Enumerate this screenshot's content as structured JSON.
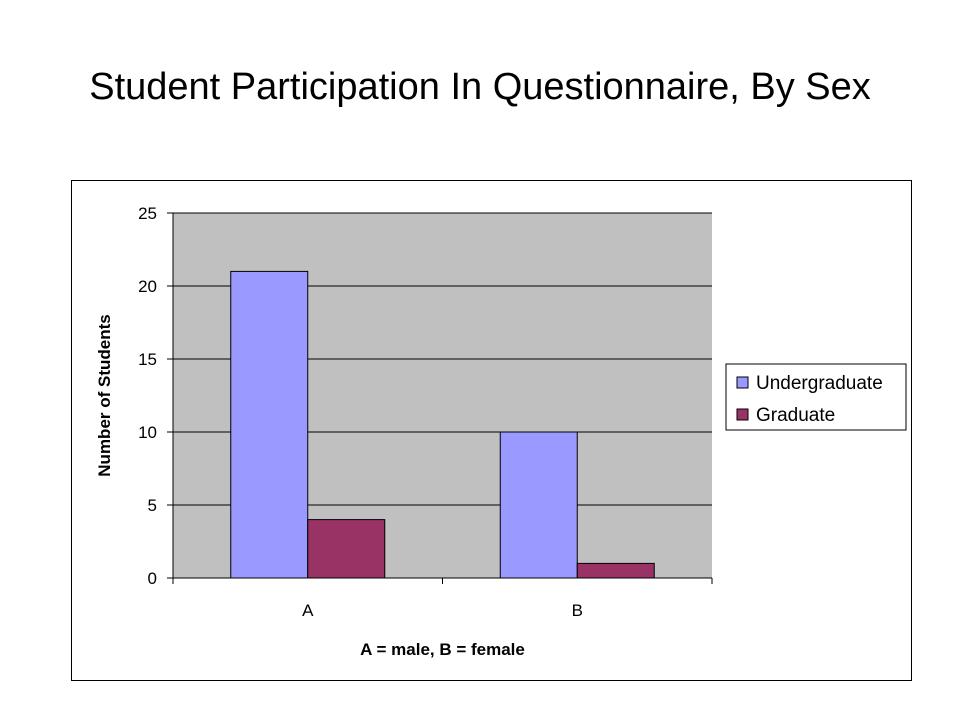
{
  "title": "Student Participation In Questionnaire, By Sex",
  "chart_data": {
    "type": "bar",
    "title": "Student Participation In Questionnaire, By Sex",
    "categories": [
      "A",
      "B"
    ],
    "series": [
      {
        "name": "Undergraduate",
        "values": [
          21,
          10
        ],
        "color": "#9999FF"
      },
      {
        "name": "Graduate",
        "values": [
          4,
          1
        ],
        "color": "#993366"
      }
    ],
    "xlabel": "A = male, B = female",
    "ylabel": "Number of Students",
    "ylim": [
      0,
      25
    ],
    "yticks": [
      0,
      5,
      10,
      15,
      20,
      25
    ],
    "grid": true,
    "plot_background": "#C0C0C0",
    "legend_position": "right"
  }
}
